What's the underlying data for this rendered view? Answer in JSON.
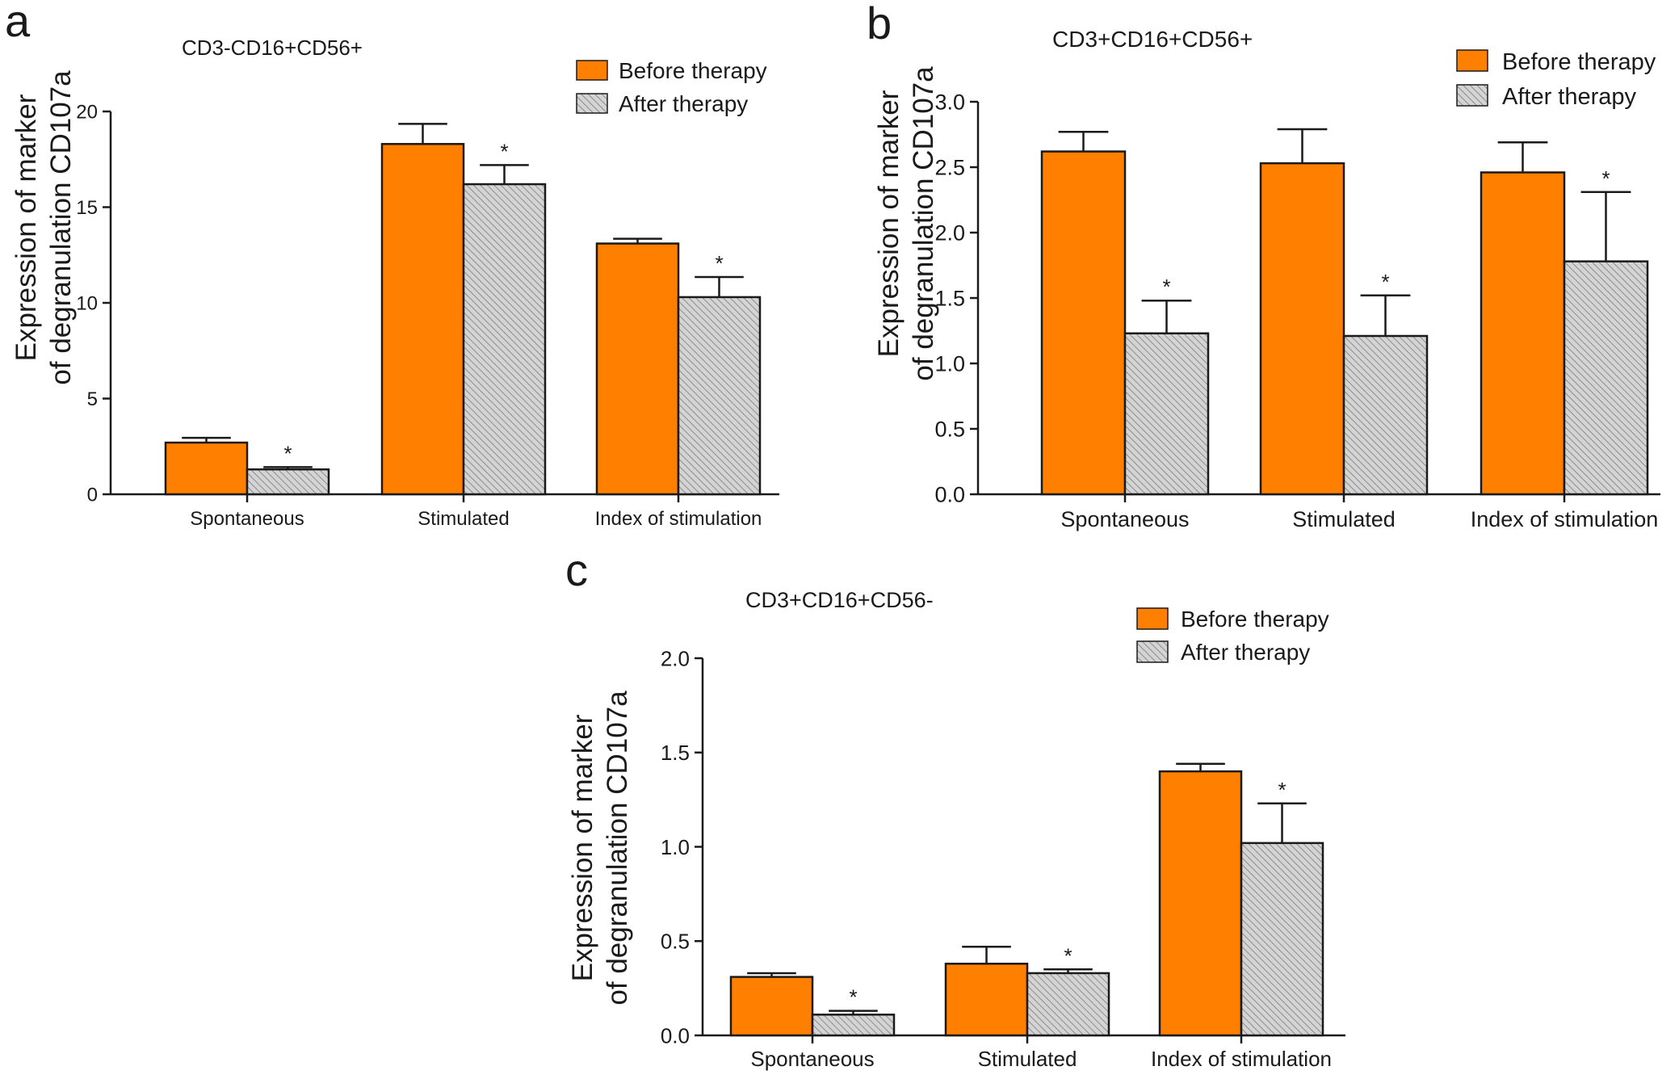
{
  "figure": {
    "colors": {
      "before": "#ff7f00",
      "after_fill": "#d4d4d4",
      "after_hatch": "#8c8c8c",
      "axis": "#1a1a1a"
    }
  },
  "chart_data": [
    {
      "panel_letter": "a",
      "type": "bar",
      "title": "CD3-CD16+CD56+",
      "ylabel_line1": "Expression of marker",
      "ylabel_line2": "of degranulation CD107a",
      "xlabel": "",
      "categories": [
        "Spontaneous",
        "Stimulated",
        "Index of stimulation"
      ],
      "series": [
        {
          "name": "Before therapy",
          "values": [
            2.7,
            18.3,
            13.1
          ],
          "errors": [
            0.25,
            1.05,
            0.25
          ],
          "significance": [
            "",
            "",
            ""
          ]
        },
        {
          "name": "After therapy",
          "values": [
            1.3,
            16.2,
            10.3
          ],
          "errors": [
            0.12,
            1.0,
            1.05
          ],
          "significance": [
            "*",
            "*",
            "*"
          ]
        }
      ],
      "ylim": [
        0,
        20
      ],
      "yticks": [
        0,
        5,
        10,
        15,
        20
      ],
      "ytick_labels": [
        "0",
        "5",
        "10",
        "15",
        "20"
      ],
      "legend": "top-right",
      "grid": false
    },
    {
      "panel_letter": "b",
      "type": "bar",
      "title": "CD3+CD16+CD56+",
      "ylabel_line1": "Expression of marker",
      "ylabel_line2": "of degranulation CD107a",
      "xlabel": "",
      "categories": [
        "Spontaneous",
        "Stimulated",
        "Index of stimulation"
      ],
      "series": [
        {
          "name": "Before therapy",
          "values": [
            2.62,
            2.53,
            2.46
          ],
          "errors": [
            0.15,
            0.26,
            0.23
          ],
          "significance": [
            "",
            "",
            ""
          ]
        },
        {
          "name": "After therapy",
          "values": [
            1.23,
            1.21,
            1.78
          ],
          "errors": [
            0.25,
            0.31,
            0.53
          ],
          "significance": [
            "*",
            "*",
            "*"
          ]
        }
      ],
      "ylim": [
        0,
        3
      ],
      "yticks": [
        0,
        0.5,
        1,
        1.5,
        2,
        2.5,
        3
      ],
      "ytick_labels": [
        "0.0",
        "0.5",
        "1.0",
        "1.5",
        "2.0",
        "2.5",
        "3.0"
      ],
      "legend": "top-right",
      "grid": false
    },
    {
      "panel_letter": "c",
      "type": "bar",
      "title": "CD3+CD16+CD56-",
      "ylabel_line1": "Expression of marker",
      "ylabel_line2": "of degranulation CD107a",
      "xlabel": "",
      "categories": [
        "Spontaneous",
        "Stimulated",
        "Index of stimulation"
      ],
      "series": [
        {
          "name": "Before therapy",
          "values": [
            0.31,
            0.38,
            1.4
          ],
          "errors": [
            0.02,
            0.09,
            0.04
          ],
          "significance": [
            "",
            "",
            ""
          ]
        },
        {
          "name": "After therapy",
          "values": [
            0.11,
            0.33,
            1.02
          ],
          "errors": [
            0.02,
            0.02,
            0.21
          ],
          "significance": [
            "*",
            "*",
            "*"
          ]
        }
      ],
      "ylim": [
        0,
        2
      ],
      "yticks": [
        0,
        0.5,
        1,
        1.5,
        2
      ],
      "ytick_labels": [
        "0.0",
        "0.5",
        "1.0",
        "1.5",
        "2.0"
      ],
      "legend": "top-right",
      "grid": false
    }
  ]
}
